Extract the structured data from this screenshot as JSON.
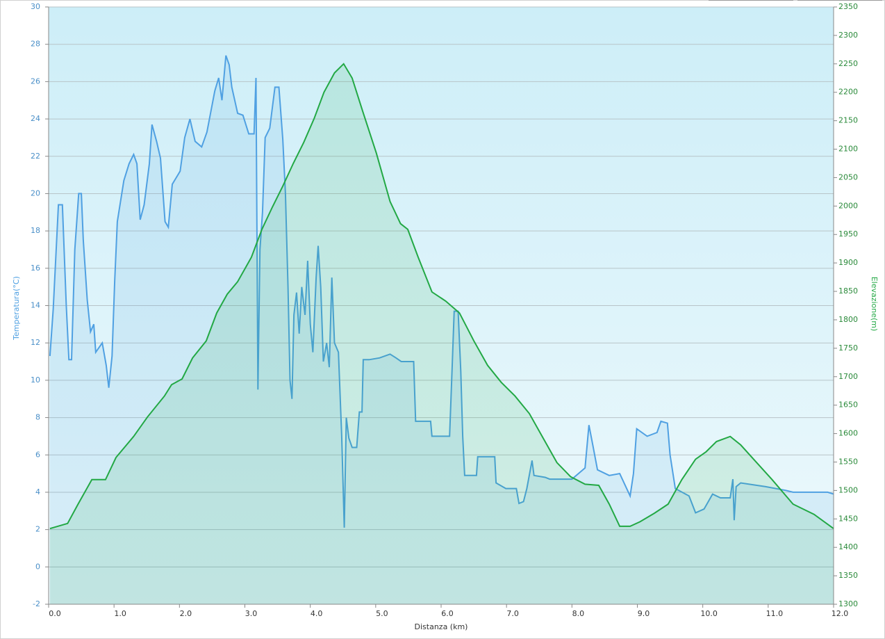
{
  "chart_data": {
    "type": "area",
    "x_label": "Distanza  (km)",
    "y_label": "Temperatura(°C)",
    "y2_label": "Elevazione(m)",
    "xlim": [
      0,
      12
    ],
    "xticks": [
      {
        "value": 0,
        "label": "0.0"
      },
      {
        "value": 1,
        "label": "1.0"
      },
      {
        "value": 2,
        "label": "2.0"
      },
      {
        "value": 3,
        "label": "3.0"
      },
      {
        "value": 4,
        "label": "4.0"
      },
      {
        "value": 5,
        "label": "5.0"
      },
      {
        "value": 6,
        "label": "6.0"
      },
      {
        "value": 7,
        "label": "7.0"
      },
      {
        "value": 8,
        "label": "8.0"
      },
      {
        "value": 9,
        "label": "9.0"
      },
      {
        "value": 10,
        "label": "10.0"
      },
      {
        "value": 11,
        "label": "11.0"
      },
      {
        "value": 12,
        "label": "12.0"
      }
    ],
    "ylim": [
      -2,
      30
    ],
    "yticks": [
      -2,
      0,
      2,
      4,
      6,
      8,
      10,
      12,
      14,
      16,
      18,
      20,
      22,
      24,
      26,
      28,
      30
    ],
    "y2lim": [
      1300,
      2350
    ],
    "y2ticks": [
      1300,
      1350,
      1400,
      1450,
      1500,
      1550,
      1600,
      1650,
      1700,
      1750,
      1800,
      1850,
      1900,
      1950,
      2000,
      2050,
      2100,
      2150,
      2200,
      2250,
      2300,
      2350
    ],
    "grid": true,
    "series": [
      {
        "color": "#4fa0e2",
        "x": [
          0.02,
          0.07,
          0.15,
          0.21,
          0.27,
          0.31,
          0.35,
          0.4,
          0.46,
          0.5,
          0.53,
          0.59,
          0.64,
          0.69,
          0.72,
          0.82,
          0.88,
          0.92,
          0.97,
          1.01,
          1.05,
          1.15,
          1.23,
          1.3,
          1.35,
          1.4,
          1.46,
          1.54,
          1.58,
          1.65,
          1.71,
          1.78,
          1.83,
          1.89,
          2.01,
          2.08,
          2.16,
          2.24,
          2.34,
          2.42,
          2.54,
          2.6,
          2.65,
          2.71,
          2.76,
          2.8,
          2.89,
          2.97,
          3.06,
          3.14,
          3.17,
          3.2,
          3.23,
          3.27,
          3.31,
          3.38,
          3.46,
          3.52,
          3.58,
          3.62,
          3.66,
          3.69,
          3.72,
          3.75,
          3.79,
          3.83,
          3.87,
          3.92,
          3.96,
          4.0,
          4.04,
          4.09,
          4.12,
          4.16,
          4.2,
          4.25,
          4.29,
          4.33,
          4.37,
          4.43,
          4.48,
          4.52,
          4.55,
          4.59,
          4.64,
          4.71,
          4.75,
          4.79,
          4.81,
          4.9,
          5.06,
          5.22,
          5.31,
          5.39,
          5.58,
          5.61,
          5.84,
          5.86,
          6.13,
          6.17,
          6.2,
          6.26,
          6.3,
          6.33,
          6.36,
          6.54,
          6.56,
          6.82,
          6.84,
          6.99,
          7.15,
          7.19,
          7.26,
          7.31,
          7.39,
          7.42,
          7.59,
          7.66,
          8.0,
          8.2,
          8.26,
          8.32,
          8.39,
          8.57,
          8.73,
          8.89,
          8.94,
          8.99,
          9.15,
          9.3,
          9.36,
          9.46,
          9.5,
          9.58,
          9.79,
          9.89,
          10.02,
          10.15,
          10.27,
          10.42,
          10.46,
          10.48,
          10.51,
          10.58,
          10.96,
          11.27,
          11.38,
          11.91,
          12.0
        ],
        "values": [
          11.3,
          13.8,
          19.4,
          19.4,
          14,
          11.1,
          11.1,
          17,
          20,
          20,
          17.5,
          14.3,
          12.6,
          13,
          11.5,
          12,
          10.8,
          9.6,
          11.3,
          15.3,
          18.5,
          20.7,
          21.6,
          22.1,
          21.6,
          18.6,
          19.4,
          21.6,
          23.7,
          22.8,
          21.9,
          18.5,
          18.2,
          20.5,
          21.2,
          23,
          24,
          22.8,
          22.5,
          23.3,
          25.5,
          26.2,
          25,
          27.4,
          26.9,
          25.7,
          24.3,
          24.2,
          23.2,
          23.2,
          26.2,
          9.5,
          17,
          19,
          23,
          23.5,
          25.7,
          25.7,
          22.9,
          20,
          15,
          10,
          9,
          13.5,
          14.7,
          12.5,
          15,
          13.5,
          16.4,
          13,
          11.5,
          15.5,
          17.2,
          15,
          11,
          12,
          10.7,
          15.5,
          12,
          11.5,
          7,
          2.1,
          8,
          6.9,
          6.4,
          6.4,
          8.3,
          8.3,
          11.1,
          11.1,
          11.2,
          11.4,
          11.2,
          11,
          11,
          7.8,
          7.8,
          7,
          7,
          10.8,
          13.7,
          13.7,
          10.5,
          7,
          4.9,
          4.9,
          5.9,
          5.9,
          4.5,
          4.2,
          4.2,
          3.4,
          3.5,
          4.2,
          5.7,
          4.9,
          4.8,
          4.7,
          4.7,
          5.3,
          7.6,
          6.5,
          5.2,
          4.9,
          5,
          3.8,
          5,
          7.4,
          7,
          7.2,
          7.8,
          7.7,
          6,
          4.2,
          3.8,
          2.9,
          3.1,
          3.9,
          3.7,
          3.7,
          4.7,
          2.5,
          4.3,
          4.5,
          4.3,
          4.1,
          4,
          4,
          3.9
        ]
      },
      {
        "color": "#22a844",
        "axis": "y2",
        "x": [
          0.02,
          0.29,
          0.45,
          0.66,
          0.87,
          1.03,
          1.3,
          1.51,
          1.77,
          1.88,
          2.04,
          2.2,
          2.41,
          2.57,
          2.73,
          2.89,
          3.1,
          3.26,
          3.42,
          3.58,
          3.74,
          3.9,
          4.06,
          4.21,
          4.37,
          4.51,
          4.64,
          4.8,
          5.01,
          5.22,
          5.38,
          5.49,
          5.65,
          5.86,
          6.07,
          6.28,
          6.5,
          6.71,
          6.92,
          7.13,
          7.35,
          7.56,
          7.77,
          7.98,
          8.2,
          8.41,
          8.57,
          8.73,
          8.89,
          9.04,
          9.26,
          9.47,
          9.68,
          9.89,
          10.05,
          10.21,
          10.42,
          10.58,
          10.8,
          11.06,
          11.38,
          11.7,
          12.0
        ],
        "values": [
          1433,
          1442,
          1476,
          1519,
          1519,
          1558,
          1595,
          1629,
          1666,
          1686,
          1696,
          1733,
          1763,
          1812,
          1845,
          1867,
          1910,
          1959,
          1998,
          2035,
          2075,
          2112,
          2154,
          2200,
          2234,
          2250,
          2225,
          2167,
          2093,
          2008,
          1969,
          1959,
          1910,
          1849,
          1833,
          1812,
          1763,
          1720,
          1690,
          1666,
          1635,
          1592,
          1549,
          1524,
          1511,
          1509,
          1476,
          1437,
          1437,
          1445,
          1460,
          1476,
          1519,
          1555,
          1568,
          1586,
          1595,
          1580,
          1552,
          1519,
          1476,
          1458,
          1433
        ]
      }
    ]
  }
}
